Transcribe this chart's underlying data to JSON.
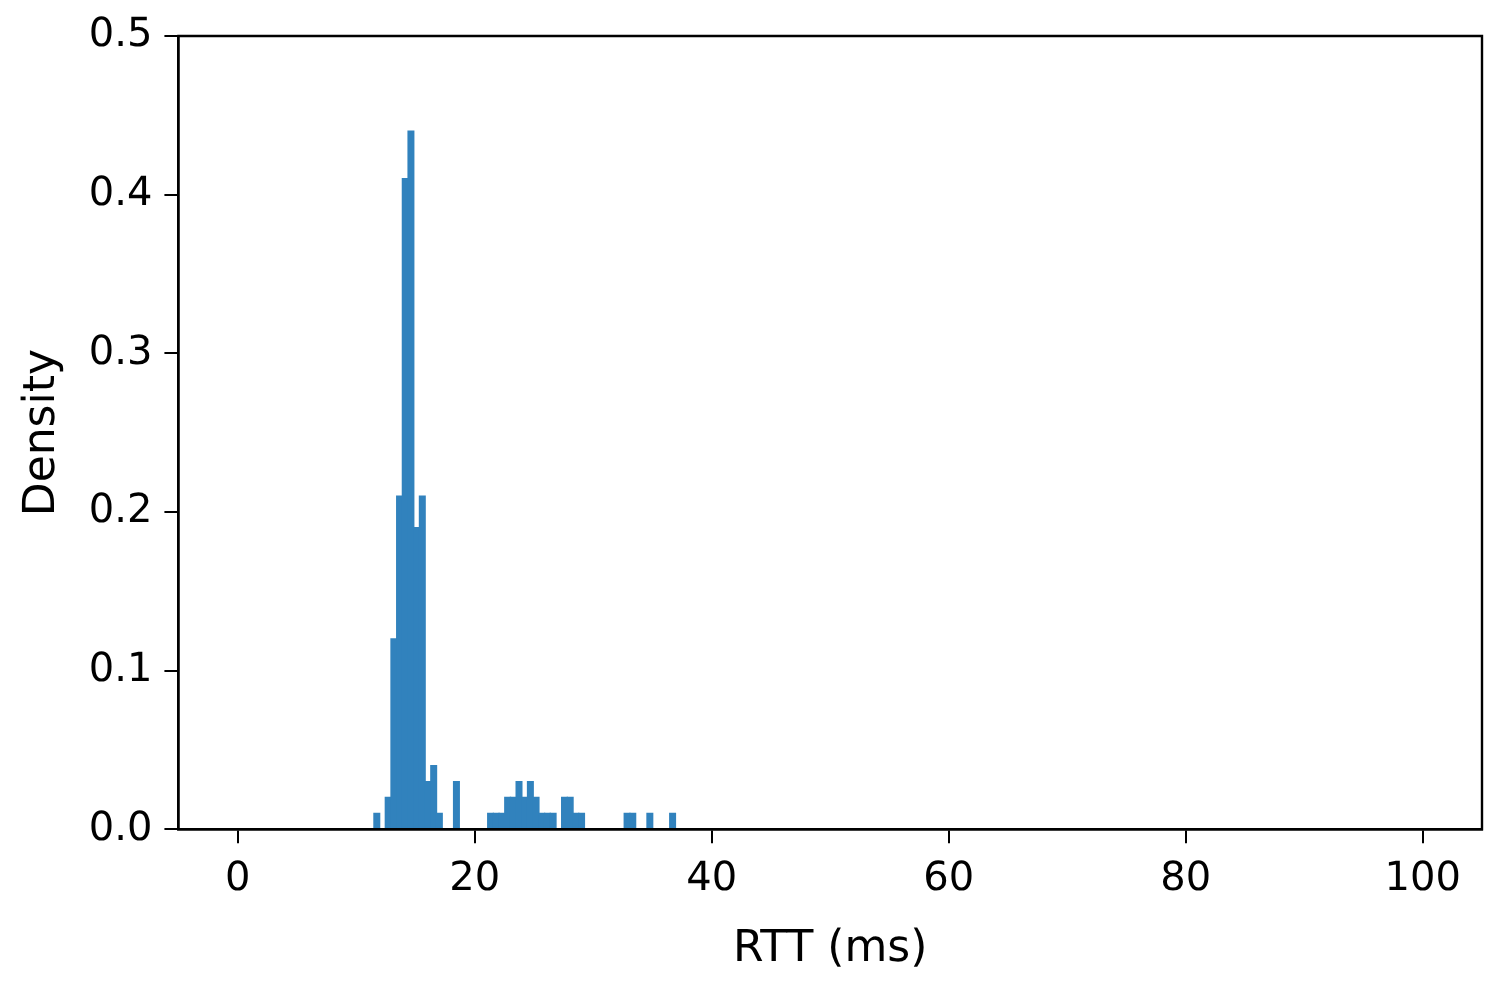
{
  "chart_data": {
    "type": "histogram",
    "xlabel": "RTT (ms)",
    "ylabel": "Density",
    "color": "#3182bd",
    "bins": [
      11.5,
      11.98,
      12.46,
      12.94,
      13.42,
      13.9,
      14.38,
      14.86,
      15.34,
      15.82,
      16.3,
      16.78,
      17.26,
      17.74,
      18.22,
      18.7,
      19.18,
      19.66,
      20.14,
      20.62,
      21.1,
      21.58,
      22.06,
      22.54,
      23.02,
      23.5,
      23.98,
      24.46,
      24.94,
      25.42,
      25.9,
      26.38,
      26.86,
      27.34,
      27.82,
      28.3,
      28.78,
      29.26,
      29.74,
      30.22,
      30.7,
      31.18,
      31.66,
      32.14,
      32.62,
      33.1,
      33.58,
      34.06,
      34.54,
      35.02,
      35.5,
      35.98,
      36.46,
      36.94
    ],
    "values": [
      0.01,
      0,
      0.02,
      0.12,
      0.21,
      0.41,
      0.44,
      0.19,
      0.21,
      0.03,
      0.04,
      0.01,
      0,
      0,
      0.03,
      0,
      0,
      0,
      0,
      0,
      0.01,
      0.01,
      0.01,
      0.02,
      0.02,
      0.03,
      0.02,
      0.03,
      0.02,
      0.01,
      0.01,
      0.01,
      0,
      0.02,
      0.02,
      0.01,
      0.01,
      0,
      0,
      0,
      0,
      0,
      0,
      0,
      0.01,
      0.01,
      0,
      0,
      0.01,
      0,
      0,
      0,
      0.01
    ],
    "xlim": [
      -5,
      105
    ],
    "xticks": [
      0,
      20,
      40,
      60,
      80,
      100
    ],
    "ylim": [
      0,
      0.5
    ],
    "yticks": [
      {
        "value": 0,
        "label": "0.0"
      },
      {
        "value": 0.1,
        "label": "0.1"
      },
      {
        "value": 0.2,
        "label": "0.2"
      },
      {
        "value": 0.3,
        "label": "0.3"
      },
      {
        "value": 0.4,
        "label": "0.4"
      },
      {
        "value": 0.5,
        "label": "0.5"
      }
    ],
    "grid": false,
    "legend": false
  }
}
